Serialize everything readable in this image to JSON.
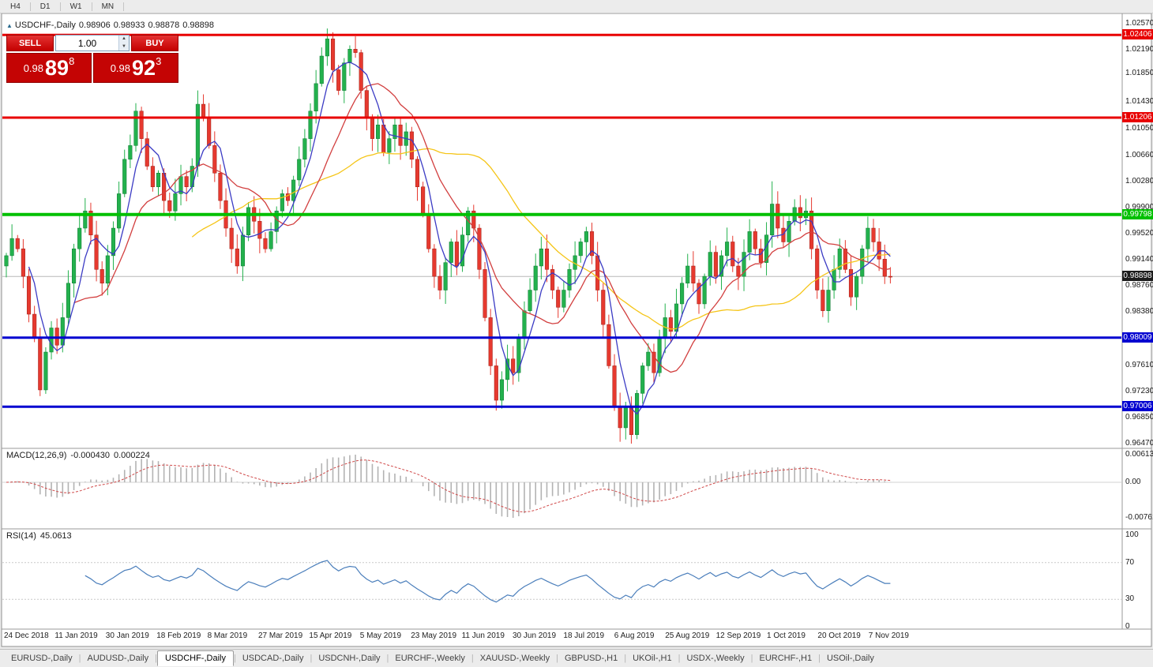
{
  "toolbar": {
    "timeframes": [
      "H4",
      "D1",
      "W1",
      "MN"
    ]
  },
  "chart": {
    "title": {
      "symbol": "USDCHF-,Daily",
      "open": "0.98906",
      "high": "0.98933",
      "low": "0.98878",
      "close": "0.98898"
    },
    "trade_widget": {
      "sell_label": "SELL",
      "buy_label": "BUY",
      "volume": "1.00",
      "sell_price": {
        "small": "0.98",
        "big": "89",
        "sup": "8"
      },
      "buy_price": {
        "small": "0.98",
        "big": "92",
        "sup": "3"
      }
    },
    "price_axis": {
      "ticks": [
        "1.02570",
        "1.02190",
        "1.01850",
        "1.01430",
        "1.01050",
        "1.00660",
        "1.00280",
        "0.99900",
        "0.99520",
        "0.99140",
        "0.98760",
        "0.98380",
        "0.97610",
        "0.97230",
        "0.96850",
        "0.96470"
      ]
    },
    "levels": [
      {
        "value": 1.02406,
        "label": "1.02406",
        "color": "#e80000",
        "width": 3,
        "type": "resistance"
      },
      {
        "value": 1.01206,
        "label": "1.01206",
        "color": "#e80000",
        "width": 3,
        "type": "resistance"
      },
      {
        "value": 0.99798,
        "label": "0.99798",
        "color": "#00c000",
        "width": 4,
        "type": "pivot"
      },
      {
        "value": 0.98009,
        "label": "0.98009",
        "color": "#0000d0",
        "width": 3,
        "type": "support"
      },
      {
        "value": 0.97006,
        "label": "0.97006",
        "color": "#0000d0",
        "width": 3,
        "type": "support"
      }
    ],
    "current_price": {
      "value": 0.98898,
      "label": "0.98898",
      "badge_color": "#1c1c1c"
    },
    "dates": [
      "24 Dec 2018",
      "11 Jan 2019",
      "30 Jan 2019",
      "18 Feb 2019",
      "8 Mar 2019",
      "27 Mar 2019",
      "15 Apr 2019",
      "5 May 2019",
      "23 May 2019",
      "11 Jun 2019",
      "30 Jun 2019",
      "18 Jul 2019",
      "6 Aug 2019",
      "25 Aug 2019",
      "12 Sep 2019",
      "1 Oct 2019",
      "20 Oct 2019",
      "7 Nov 2019"
    ]
  },
  "macd": {
    "name": "MACD(12,26,9)",
    "value_main": "-0.000430",
    "value_signal": "0.000224",
    "axis": [
      {
        "label": "0.00613",
        "pos": "top"
      },
      {
        "label": "0.00",
        "pos": "zero"
      },
      {
        "label": "-0.00761",
        "pos": "bottom"
      }
    ]
  },
  "rsi": {
    "name": "RSI(14)",
    "value": "45.0613",
    "axis": [
      {
        "label": "100",
        "value": 100
      },
      {
        "label": "70",
        "value": 70
      },
      {
        "label": "30",
        "value": 30
      },
      {
        "label": "0",
        "value": 0
      }
    ],
    "levels": [
      70,
      30
    ]
  },
  "tabs": {
    "items": [
      {
        "label": "EURUSD-,Daily",
        "active": false
      },
      {
        "label": "AUDUSD-,Daily",
        "active": false
      },
      {
        "label": "USDCHF-,Daily",
        "active": true
      },
      {
        "label": "USDCAD-,Daily",
        "active": false
      },
      {
        "label": "USDCNH-,Daily",
        "active": false
      },
      {
        "label": "EURCHF-,Weekly",
        "active": false
      },
      {
        "label": "XAUUSD-,Weekly",
        "active": false
      },
      {
        "label": "GBPUSD-,H1",
        "active": false
      },
      {
        "label": "UKOil-,H1",
        "active": false
      },
      {
        "label": "USDX-,Weekly",
        "active": false
      },
      {
        "label": "EURCHF-,H1",
        "active": false
      },
      {
        "label": "USOil-,Daily",
        "active": false
      }
    ]
  },
  "chart_data": {
    "type": "candlestick",
    "title": "USDCHF-,Daily",
    "ohlc_current": {
      "open": 0.98906,
      "high": 0.98933,
      "low": 0.98878,
      "close": 0.98898
    },
    "ylim": [
      0.9647,
      1.0257
    ],
    "first_open": 0.9905,
    "closes": [
      0.992,
      0.9945,
      0.993,
      0.989,
      0.9835,
      0.98,
      0.9725,
      0.978,
      0.9815,
      0.979,
      0.983,
      0.988,
      0.993,
      0.996,
      0.9985,
      0.995,
      0.99,
      0.988,
      0.992,
      0.996,
      1.001,
      1.006,
      1.008,
      1.013,
      1.009,
      1.005,
      1.002,
      1.004,
      1.0,
      0.9985,
      1.001,
      1.0035,
      1.002,
      1.005,
      1.014,
      1.012,
      1.008,
      1.004,
      1.0,
      0.996,
      0.993,
      0.9905,
      0.995,
      0.999,
      0.997,
      0.9945,
      0.993,
      0.9955,
      0.9985,
      1.001,
      1.0,
      1.003,
      1.006,
      1.009,
      1.013,
      1.017,
      1.021,
      1.0235,
      1.019,
      1.016,
      1.02,
      1.022,
      1.0215,
      1.016,
      1.012,
      1.009,
      1.011,
      1.007,
      1.009,
      1.011,
      1.008,
      1.01,
      1.006,
      1.002,
      0.998,
      0.993,
      0.989,
      0.987,
      0.991,
      0.994,
      0.9905,
      0.995,
      0.9985,
      0.996,
      0.99,
      0.983,
      0.976,
      0.971,
      0.974,
      0.977,
      0.975,
      0.98,
      0.984,
      0.987,
      0.9905,
      0.993,
      0.99,
      0.987,
      0.9845,
      0.987,
      0.99,
      0.992,
      0.994,
      0.9955,
      0.992,
      0.987,
      0.982,
      0.976,
      0.97,
      0.967,
      0.97,
      0.966,
      0.972,
      0.976,
      0.978,
      0.975,
      0.98,
      0.983,
      0.981,
      0.985,
      0.988,
      0.9905,
      0.988,
      0.985,
      0.989,
      0.9925,
      0.989,
      0.992,
      0.994,
      0.9905,
      0.989,
      0.9925,
      0.9955,
      0.993,
      0.991,
      0.995,
      0.9995,
      0.996,
      0.994,
      0.997,
      0.999,
      0.9975,
      0.9985,
      0.993,
      0.987,
      0.984,
      0.987,
      0.99,
      0.993,
      0.99,
      0.986,
      0.989,
      0.993,
      0.996,
      0.994,
      0.9915,
      0.989,
      0.98898
    ],
    "extremes": {
      "6": {
        "low": 0.9716
      },
      "34": {
        "high": 1.016
      },
      "57": {
        "high": 1.025
      },
      "87": {
        "low": 0.9695
      },
      "111": {
        "low": 0.9647
      },
      "136": {
        "high": 1.0028
      }
    },
    "moving_averages": [
      {
        "period": 5
      },
      {
        "period": 13
      },
      {
        "period": 34
      }
    ],
    "colors": {
      "up": "#23b14d",
      "down": "#e6392f",
      "up_edge": "#0f7a33",
      "down_edge": "#9e1f16",
      "ma_fast": "#3b3bc4",
      "ma_mid": "#d23f3f",
      "ma_slow": "#f5c518",
      "macd_hist": "#b3b3b3",
      "macd_signal": "#d04949",
      "rsi_line": "#4a7ebb"
    }
  }
}
